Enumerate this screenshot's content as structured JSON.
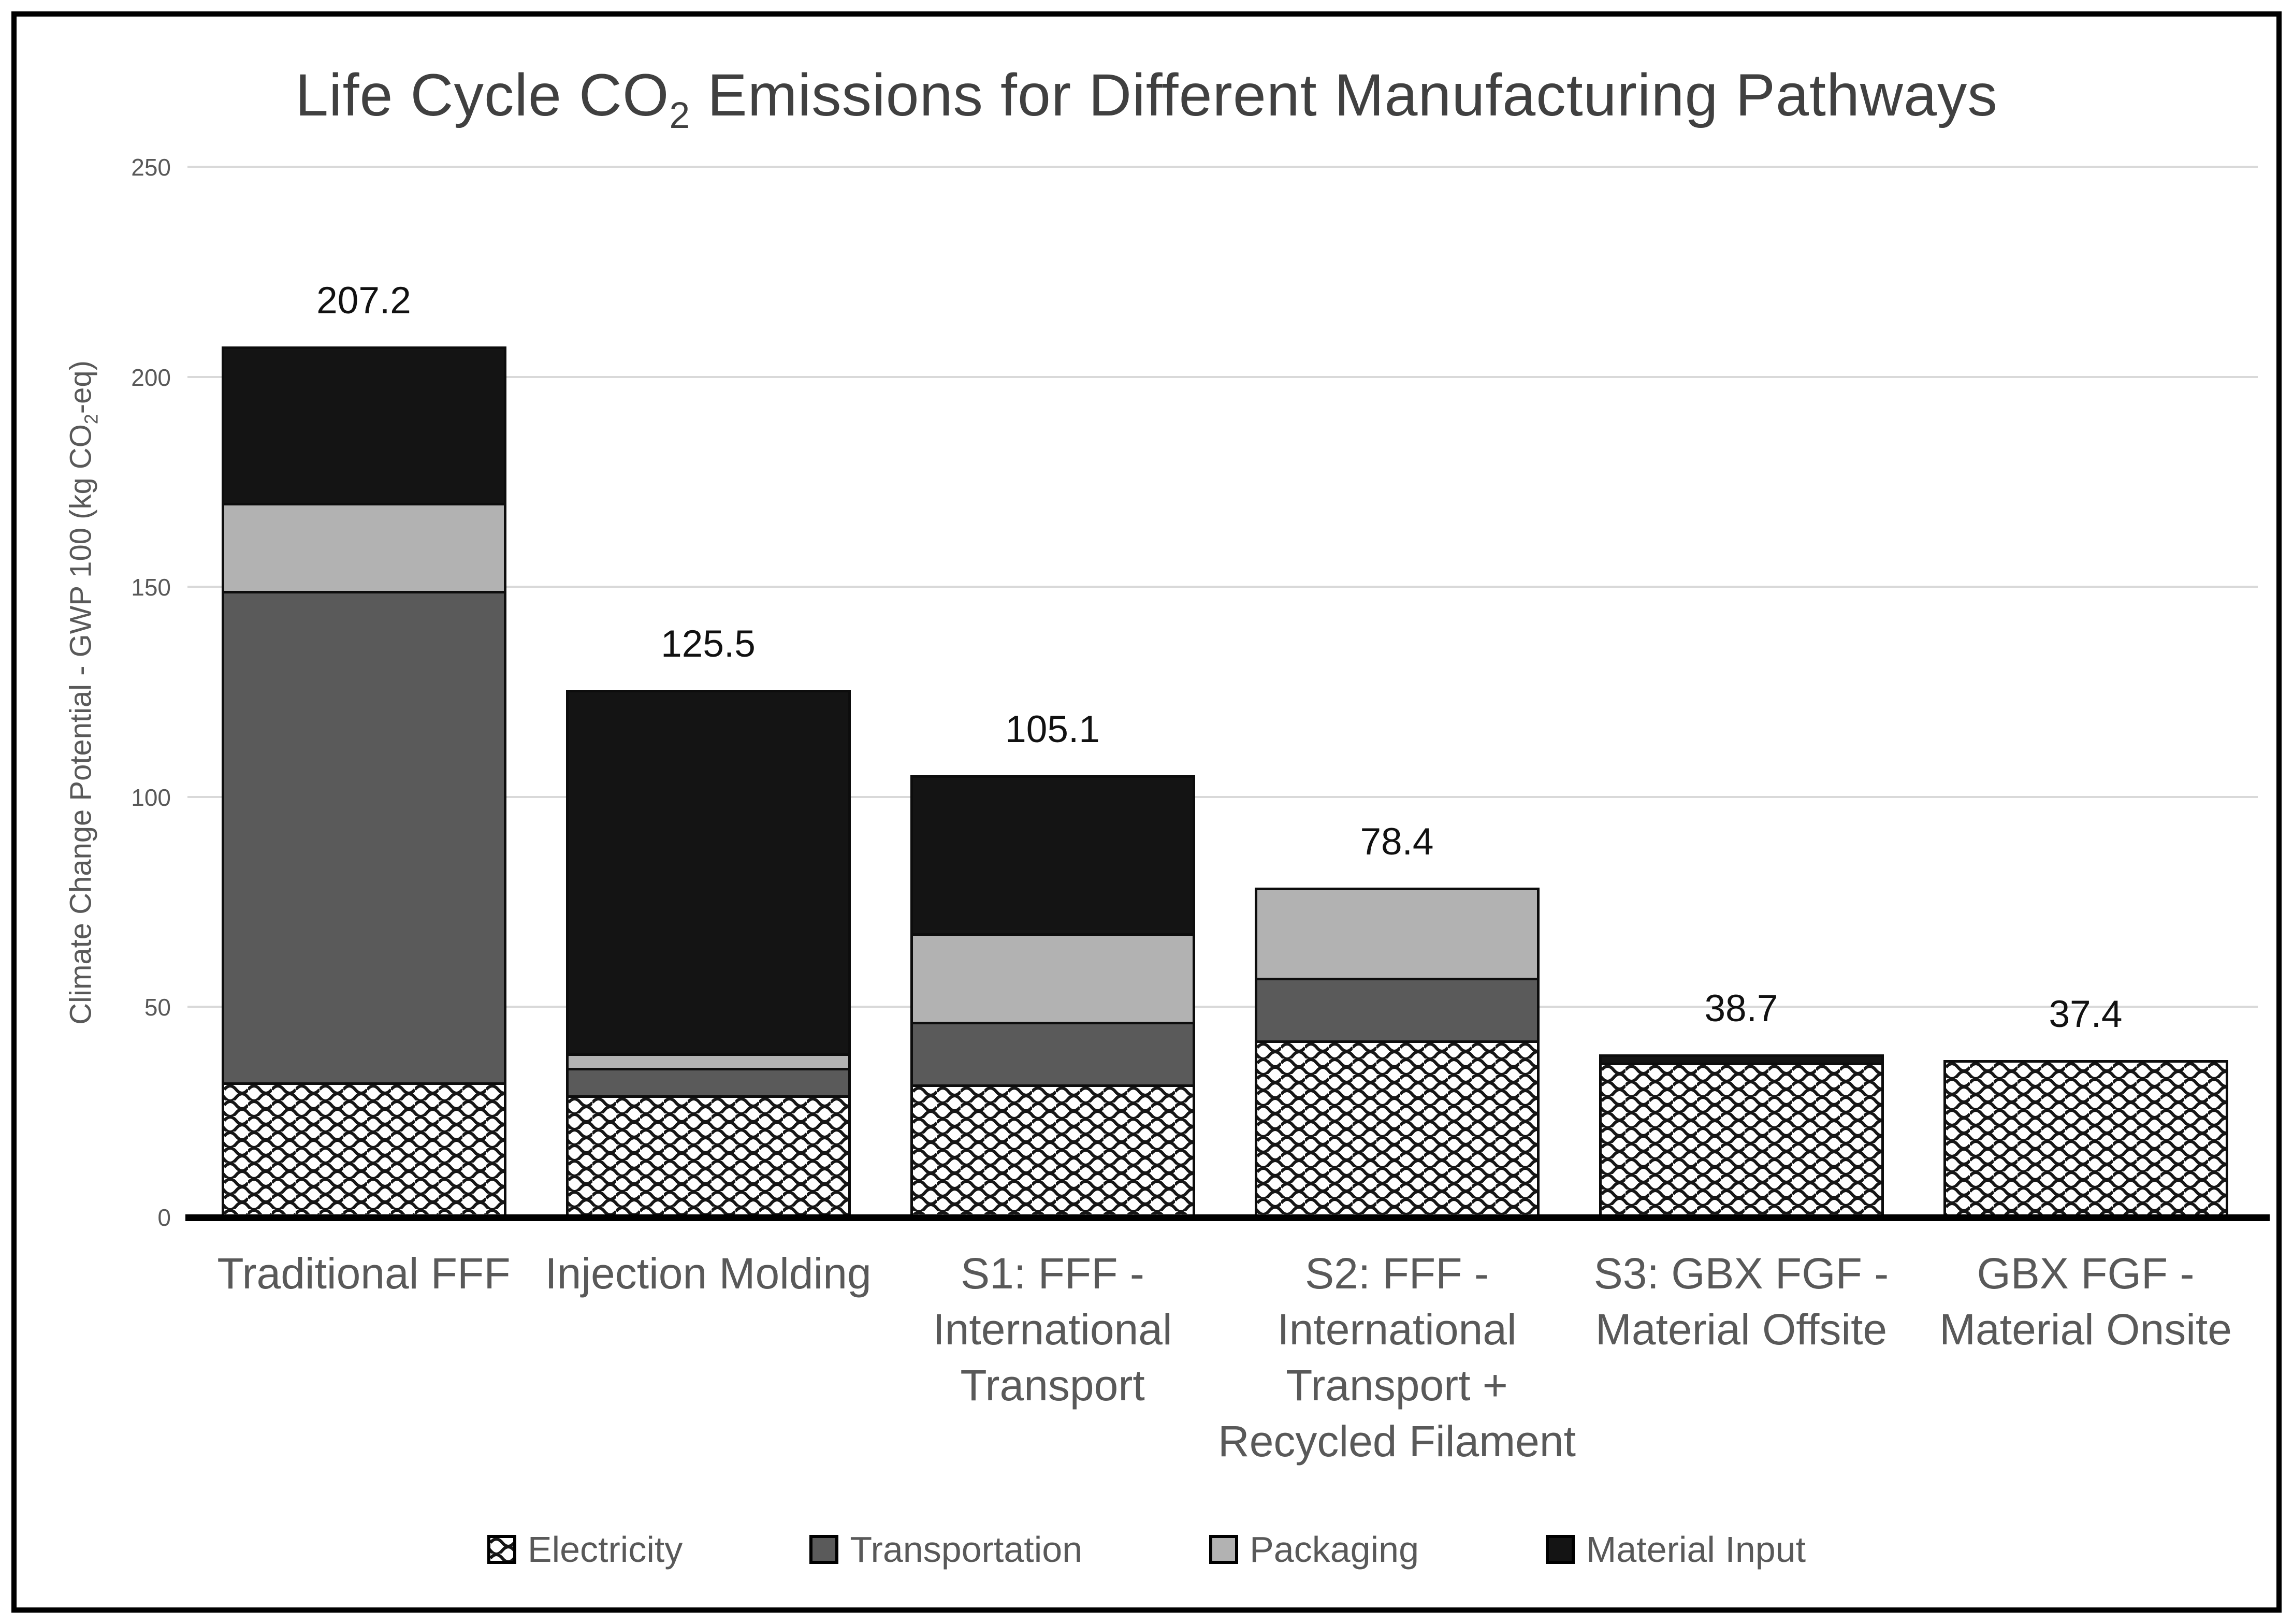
{
  "chart_data": {
    "type": "bar",
    "variant": "stacked",
    "title": "Life Cycle CO2 Emissions for Different Manufacturing Pathways",
    "xlabel": "",
    "ylabel": "Climate Change Potential - GWP 100 (kg CO2-eq)",
    "ylim": [
      0,
      250
    ],
    "yticks": [
      0,
      50,
      100,
      150,
      200,
      250
    ],
    "grid": "horizontal",
    "legend_position": "bottom",
    "categories": [
      {
        "label": "Traditional FFF",
        "label_lines": [
          "Traditional FFF"
        ]
      },
      {
        "label": "Injection Molding",
        "label_lines": [
          "Injection Molding"
        ]
      },
      {
        "label": "S1: FFF - International Transport",
        "label_lines": [
          "S1: FFF -",
          "International",
          "Transport"
        ]
      },
      {
        "label": "S2: FFF - International Transport + Recycled Filament",
        "label_lines": [
          "S2: FFF -",
          "International",
          "Transport +",
          "Recycled Filament"
        ]
      },
      {
        "label": "S3: GBX FGF - Material Offsite",
        "label_lines": [
          "S3: GBX FGF -",
          "Material Offsite"
        ]
      },
      {
        "label": "GBX FGF - Material Onsite",
        "label_lines": [
          "GBX FGF -",
          "Material Onsite"
        ]
      }
    ],
    "series": [
      {
        "name": "Electricity",
        "fill": "pattern-wave",
        "color": "#ffffff",
        "pattern_color": "#161616",
        "values": [
          32.0,
          29.0,
          31.5,
          42.0,
          36.7,
          37.4
        ]
      },
      {
        "name": "Transportation",
        "fill": "solid",
        "color": "#5a5a5a",
        "values": [
          117.0,
          6.5,
          15.0,
          15.0,
          0,
          0
        ]
      },
      {
        "name": "Packaging",
        "fill": "solid",
        "color": "#b2b2b2",
        "values": [
          21.0,
          3.5,
          21.0,
          21.4,
          0,
          0
        ]
      },
      {
        "name": "Material Input",
        "fill": "solid",
        "color": "#141414",
        "values": [
          37.2,
          86.5,
          37.6,
          0,
          2.0,
          0
        ]
      }
    ],
    "totals": [
      207.2,
      125.5,
      105.1,
      78.4,
      38.7,
      37.4
    ],
    "total_labels": [
      "207.2",
      "125.5",
      "105.1",
      "78.4",
      "38.7",
      "37.4"
    ]
  },
  "colors": {
    "frame": "#000000",
    "gridline": "#d9d9d9",
    "axis_line": "#000000",
    "title_text": "#404040",
    "tick_text": "#595959",
    "category_text": "#595959",
    "legend_text": "#595959",
    "data_label_text": "#111111",
    "segment_border": "#0d0d0d"
  }
}
